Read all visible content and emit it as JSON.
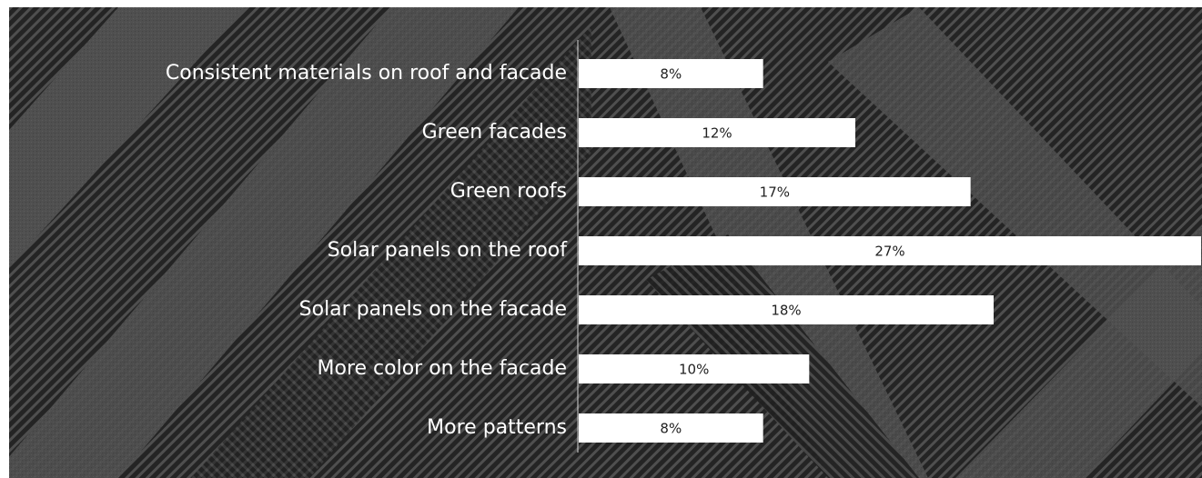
{
  "chart_data": {
    "type": "bar",
    "orientation": "horizontal",
    "categories": [
      "Consistent materials on roof and facade",
      "Green facades",
      "Green roofs",
      "Solar panels on the roof",
      "Solar panels on the facade",
      "More color on the facade",
      "More patterns"
    ],
    "values": [
      8,
      12,
      17,
      27,
      18,
      10,
      8
    ],
    "value_labels": [
      "8%",
      "12%",
      "17%",
      "27%",
      "18%",
      "10%",
      "8%"
    ],
    "xlim": [
      0,
      27
    ],
    "grid": false,
    "legend": "none",
    "title": "",
    "xlabel": "",
    "ylabel": ""
  },
  "colors": {
    "bar": "#ffffff",
    "axis_line": "#d8d8d8",
    "category_text": "#ffffff",
    "value_text": "#222222",
    "background_dark": "#2a2a2a",
    "background_stripe": "#4a4a4a"
  }
}
